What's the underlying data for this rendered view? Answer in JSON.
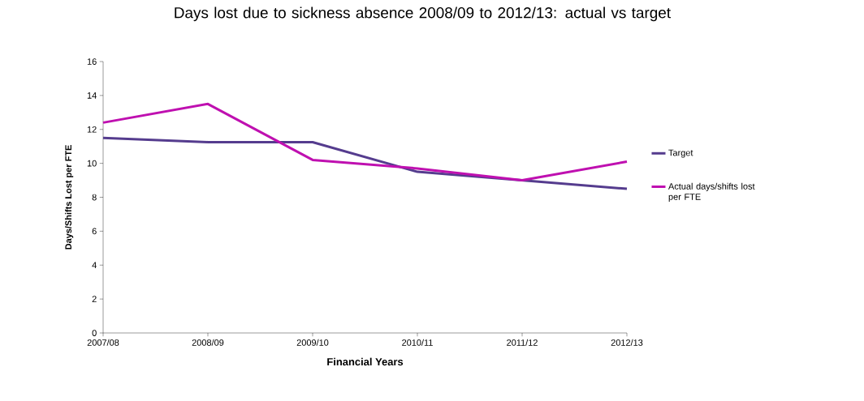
{
  "chart_data": {
    "type": "line",
    "title": "Days lost due to sickness absence 2008/09 to 2012/13: actual vs target",
    "xlabel": "Financial Years",
    "ylabel": "Days/Shifts Lost per FTE",
    "categories": [
      "2007/08",
      "2008/09",
      "2009/10",
      "2010/11",
      "2011/12",
      "2012/13"
    ],
    "series": [
      {
        "name": "Target",
        "color": "#553c8e",
        "values": [
          11.5,
          11.25,
          11.25,
          9.5,
          9.0,
          8.5
        ]
      },
      {
        "name": "Actual days/shifts lost per FTE",
        "color": "#bf10b0",
        "values": [
          12.4,
          13.5,
          10.2,
          9.7,
          9.0,
          10.1
        ]
      }
    ],
    "ylim": [
      0,
      16
    ],
    "yticks": [
      0,
      2,
      4,
      6,
      8,
      10,
      12,
      14,
      16
    ],
    "grid": false,
    "legend": "right"
  }
}
